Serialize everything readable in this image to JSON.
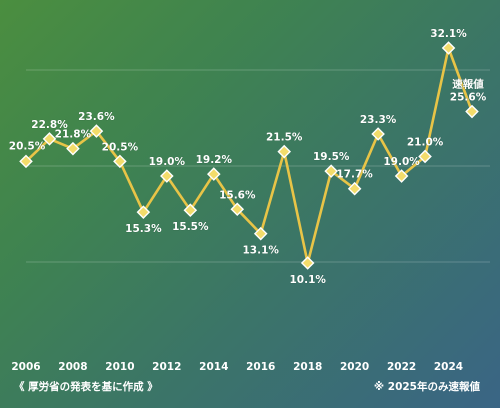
{
  "colors": {
    "line": "#e8c447",
    "marker": "#f3dc6b",
    "text": "#ffffff"
  },
  "footer": {
    "source": "《 厚労省の発表を基に作成 》",
    "note": "※ 2025年のみ速報値"
  },
  "chart_data": {
    "type": "line",
    "x": [
      2006,
      2007,
      2008,
      2009,
      2010,
      2011,
      2012,
      2013,
      2014,
      2015,
      2016,
      2017,
      2018,
      2019,
      2020,
      2021,
      2022,
      2023,
      2024,
      2025
    ],
    "series": [
      {
        "values": [
          20.5,
          22.8,
          21.8,
          23.6,
          20.5,
          15.3,
          19.0,
          15.5,
          19.2,
          15.6,
          13.1,
          21.5,
          10.1,
          19.5,
          17.7,
          23.3,
          19.0,
          21.0,
          32.1,
          25.6
        ]
      }
    ],
    "data_labels": [
      "20.5%",
      "22.8%",
      "21.8%",
      "23.6%",
      "20.5%",
      "15.3%",
      "19.0%",
      "15.5%",
      "19.2%",
      "15.6%",
      "13.1%",
      "21.5%",
      "10.1%",
      "19.5%",
      "17.7%",
      "23.3%",
      "19.0%",
      "21.0%",
      "32.1%",
      "25.6%"
    ],
    "annotations": [
      {
        "x": 2025,
        "text": "速報値"
      }
    ],
    "x_ticks": [
      "2006",
      "2008",
      "2010",
      "2012",
      "2014",
      "2016",
      "2018",
      "2020",
      "2022",
      "2024"
    ],
    "xlim": [
      2006,
      2025
    ],
    "ylim": [
      10.1,
      32.1
    ],
    "grid": true
  }
}
